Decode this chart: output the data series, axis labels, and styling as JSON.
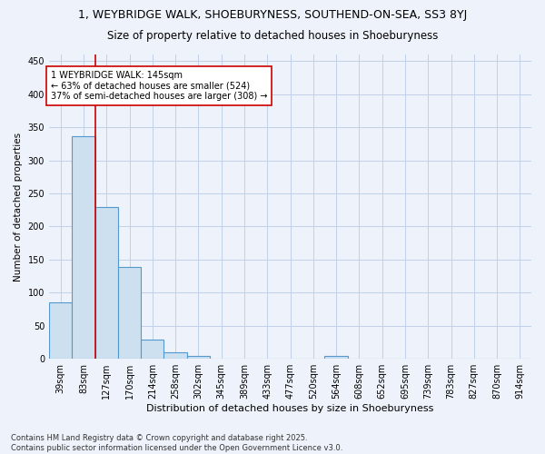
{
  "title": "1, WEYBRIDGE WALK, SHOEBURYNESS, SOUTHEND-ON-SEA, SS3 8YJ",
  "subtitle": "Size of property relative to detached houses in Shoeburyness",
  "xlabel": "Distribution of detached houses by size in Shoeburyness",
  "ylabel": "Number of detached properties",
  "bins": [
    "39sqm",
    "83sqm",
    "127sqm",
    "170sqm",
    "214sqm",
    "258sqm",
    "302sqm",
    "345sqm",
    "389sqm",
    "433sqm",
    "477sqm",
    "520sqm",
    "564sqm",
    "608sqm",
    "652sqm",
    "695sqm",
    "739sqm",
    "783sqm",
    "827sqm",
    "870sqm",
    "914sqm"
  ],
  "values": [
    85,
    337,
    229,
    139,
    29,
    10,
    4,
    0,
    0,
    0,
    0,
    0,
    5,
    0,
    0,
    0,
    0,
    0,
    0,
    0,
    0
  ],
  "bar_color": "#cce0f0",
  "bar_edge_color": "#5599cc",
  "grid_color": "#c0d0e8",
  "background_color": "#eef2fa",
  "vline_color": "#cc0000",
  "annotation_text": "1 WEYBRIDGE WALK: 145sqm\n← 63% of detached houses are smaller (524)\n37% of semi-detached houses are larger (308) →",
  "annotation_box_color": "#ffffff",
  "annotation_box_edge": "#cc0000",
  "footer_text": "Contains HM Land Registry data © Crown copyright and database right 2025.\nContains public sector information licensed under the Open Government Licence v3.0.",
  "ylim": [
    0,
    460
  ],
  "yticks": [
    0,
    50,
    100,
    150,
    200,
    250,
    300,
    350,
    400,
    450
  ],
  "property_size_sqm": 145,
  "vline_bin_index": 2,
  "title_fontsize": 9,
  "subtitle_fontsize": 8.5,
  "annotation_fontsize": 7,
  "xlabel_fontsize": 8,
  "ylabel_fontsize": 7.5,
  "tick_fontsize": 7,
  "footer_fontsize": 6
}
